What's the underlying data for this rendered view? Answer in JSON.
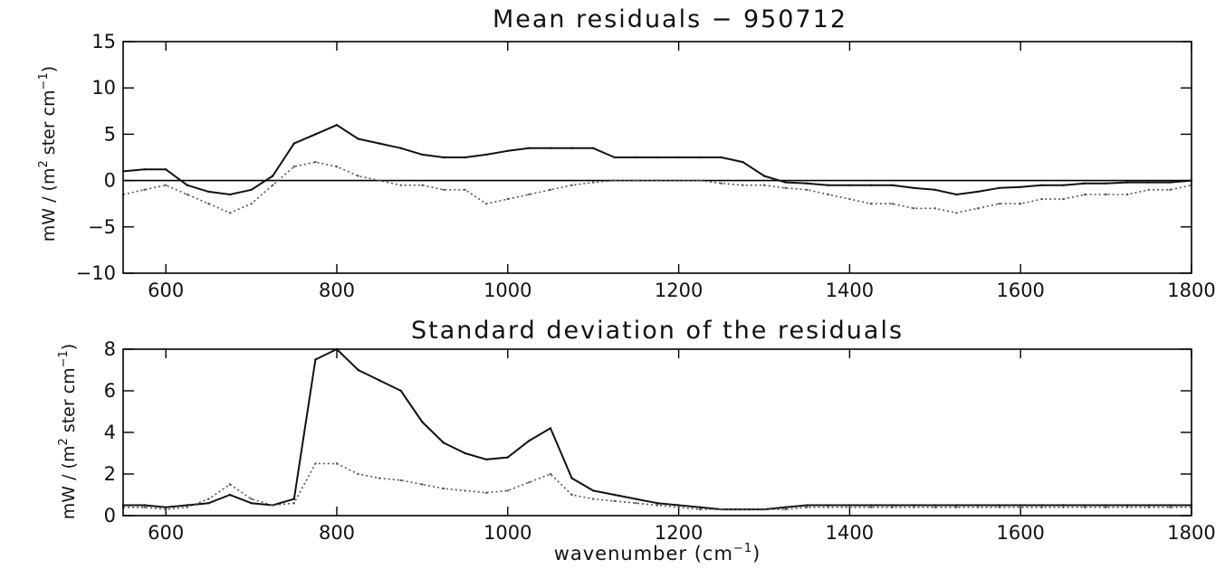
{
  "chart_data": [
    {
      "type": "line",
      "title": "Mean residuals  −  950712",
      "ylabel_prefix": "mW / (m",
      "ylabel_sup1": "2",
      "ylabel_mid": " ster cm",
      "ylabel_sup2": "−1",
      "ylabel_suffix": ")",
      "xlim": [
        550,
        1800
      ],
      "ylim": [
        -10,
        15
      ],
      "xticks": [
        600,
        800,
        1000,
        1200,
        1400,
        1600,
        1800
      ],
      "xtick_labels": [
        "600",
        "800",
        "1000",
        "1200",
        "1400",
        "1600",
        "1800"
      ],
      "yticks": [
        -10,
        -5,
        0,
        5,
        10,
        15
      ],
      "ytick_labels": [
        "−10",
        "−5",
        "0",
        "5",
        "10",
        "15"
      ],
      "reference_line": 0,
      "grid": false,
      "series": [
        {
          "style": "solid",
          "color": "#111111",
          "x": [
            550,
            575,
            600,
            625,
            650,
            675,
            700,
            725,
            750,
            775,
            800,
            825,
            850,
            875,
            900,
            925,
            950,
            975,
            1000,
            1025,
            1050,
            1075,
            1100,
            1125,
            1150,
            1175,
            1200,
            1225,
            1250,
            1275,
            1300,
            1325,
            1350,
            1375,
            1400,
            1425,
            1450,
            1475,
            1500,
            1525,
            1550,
            1575,
            1600,
            1625,
            1650,
            1675,
            1700,
            1725,
            1750,
            1775,
            1800
          ],
          "y": [
            1.0,
            1.2,
            1.2,
            -0.5,
            -1.2,
            -1.5,
            -1.0,
            0.5,
            4.0,
            5.0,
            6.0,
            4.5,
            4.0,
            3.5,
            2.8,
            2.5,
            2.5,
            2.8,
            3.2,
            3.5,
            3.5,
            3.5,
            3.5,
            2.5,
            2.5,
            2.5,
            2.5,
            2.5,
            2.5,
            2.0,
            0.5,
            -0.2,
            -0.3,
            -0.5,
            -0.5,
            -0.5,
            -0.5,
            -0.8,
            -1.0,
            -1.5,
            -1.2,
            -0.8,
            -0.7,
            -0.5,
            -0.5,
            -0.3,
            -0.3,
            -0.2,
            -0.2,
            -0.2,
            0.0
          ]
        },
        {
          "style": "dotted",
          "color": "#555555",
          "x": [
            550,
            575,
            600,
            625,
            650,
            675,
            700,
            725,
            750,
            775,
            800,
            825,
            850,
            875,
            900,
            925,
            950,
            975,
            1000,
            1025,
            1050,
            1075,
            1100,
            1125,
            1150,
            1175,
            1200,
            1225,
            1250,
            1275,
            1300,
            1325,
            1350,
            1375,
            1400,
            1425,
            1450,
            1475,
            1500,
            1525,
            1550,
            1575,
            1600,
            1625,
            1650,
            1675,
            1700,
            1725,
            1750,
            1775,
            1800
          ],
          "y": [
            -1.5,
            -1.0,
            -0.5,
            -1.5,
            -2.5,
            -3.5,
            -2.5,
            -0.5,
            1.5,
            2.0,
            1.5,
            0.5,
            0.0,
            -0.5,
            -0.5,
            -1.0,
            -1.0,
            -2.5,
            -2.0,
            -1.5,
            -1.0,
            -0.5,
            -0.2,
            0.0,
            0.0,
            0.0,
            0.0,
            0.0,
            -0.3,
            -0.5,
            -0.5,
            -0.8,
            -1.0,
            -1.5,
            -2.0,
            -2.5,
            -2.5,
            -3.0,
            -3.0,
            -3.5,
            -3.0,
            -2.5,
            -2.5,
            -2.0,
            -2.0,
            -1.5,
            -1.5,
            -1.5,
            -1.0,
            -1.0,
            -0.5
          ]
        }
      ]
    },
    {
      "type": "line",
      "title": "Standard deviation of the residuals",
      "xlabel_prefix": "wavenumber (cm",
      "xlabel_sup": "−1",
      "xlabel_suffix": ")",
      "ylabel_prefix": "mW / (m",
      "ylabel_sup1": "2",
      "ylabel_mid": " ster cm",
      "ylabel_sup2": "−1",
      "ylabel_suffix": ")",
      "xlim": [
        550,
        1800
      ],
      "ylim": [
        0,
        8
      ],
      "xticks": [
        600,
        800,
        1000,
        1200,
        1400,
        1600,
        1800
      ],
      "xtick_labels": [
        "600",
        "800",
        "1000",
        "1200",
        "1400",
        "1600",
        "1800"
      ],
      "yticks": [
        0,
        2,
        4,
        6,
        8
      ],
      "ytick_labels": [
        "0",
        "2",
        "4",
        "6",
        "8"
      ],
      "grid": false,
      "series": [
        {
          "style": "solid",
          "color": "#111111",
          "x": [
            550,
            575,
            600,
            625,
            650,
            675,
            700,
            725,
            750,
            775,
            800,
            825,
            850,
            875,
            900,
            925,
            950,
            975,
            1000,
            1025,
            1050,
            1075,
            1100,
            1125,
            1150,
            1175,
            1200,
            1225,
            1250,
            1275,
            1300,
            1325,
            1350,
            1375,
            1400,
            1425,
            1450,
            1475,
            1500,
            1525,
            1550,
            1575,
            1600,
            1625,
            1650,
            1675,
            1700,
            1725,
            1750,
            1775,
            1800
          ],
          "y": [
            0.5,
            0.5,
            0.4,
            0.5,
            0.6,
            1.0,
            0.6,
            0.5,
            0.8,
            7.5,
            8.0,
            7.0,
            6.5,
            6.0,
            4.5,
            3.5,
            3.0,
            2.7,
            2.8,
            3.6,
            4.2,
            1.8,
            1.2,
            1.0,
            0.8,
            0.6,
            0.5,
            0.4,
            0.3,
            0.3,
            0.3,
            0.4,
            0.5,
            0.5,
            0.5,
            0.5,
            0.5,
            0.5,
            0.5,
            0.5,
            0.5,
            0.5,
            0.5,
            0.5,
            0.5,
            0.5,
            0.5,
            0.5,
            0.5,
            0.5,
            0.5
          ]
        },
        {
          "style": "dotted",
          "color": "#555555",
          "x": [
            550,
            575,
            600,
            625,
            650,
            675,
            700,
            725,
            750,
            775,
            800,
            825,
            850,
            875,
            900,
            925,
            950,
            975,
            1000,
            1025,
            1050,
            1075,
            1100,
            1125,
            1150,
            1175,
            1200,
            1225,
            1250,
            1275,
            1300,
            1325,
            1350,
            1375,
            1400,
            1425,
            1450,
            1475,
            1500,
            1525,
            1550,
            1575,
            1600,
            1625,
            1650,
            1675,
            1700,
            1725,
            1750,
            1775,
            1800
          ],
          "y": [
            0.4,
            0.4,
            0.3,
            0.4,
            0.8,
            1.5,
            0.8,
            0.5,
            0.6,
            2.5,
            2.5,
            2.0,
            1.8,
            1.7,
            1.5,
            1.3,
            1.2,
            1.1,
            1.2,
            1.6,
            2.0,
            1.0,
            0.8,
            0.7,
            0.6,
            0.5,
            0.4,
            0.3,
            0.3,
            0.3,
            0.3,
            0.3,
            0.4,
            0.4,
            0.4,
            0.4,
            0.4,
            0.4,
            0.4,
            0.4,
            0.4,
            0.4,
            0.4,
            0.4,
            0.4,
            0.4,
            0.4,
            0.4,
            0.4,
            0.4,
            0.4
          ]
        }
      ]
    }
  ]
}
